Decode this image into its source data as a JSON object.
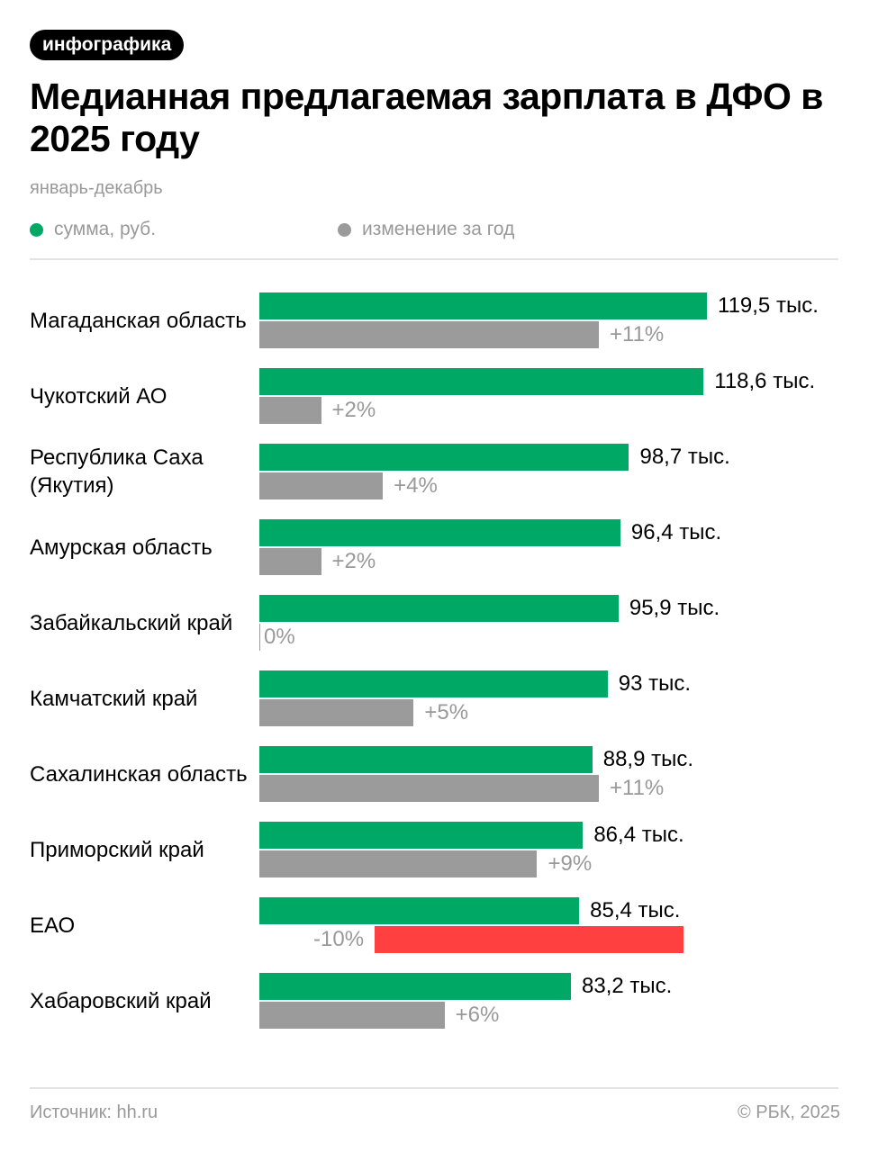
{
  "chart_data": {
    "type": "bar",
    "tag": "инфографика",
    "title": "Медианная предлагаемая зарплата в ДФО в 2025 году",
    "subtitle": "январь-декабрь",
    "categories": [
      "Магаданская область",
      "Чукотский АО",
      "Республика Саха (Якутия)",
      "Амурская область",
      "Забайкальский край",
      "Камчатский край",
      "Сахалинская область",
      "Приморский край",
      "ЕАО",
      "Хабаровский край"
    ],
    "series": [
      {
        "name": "сумма, руб.",
        "color": "#00a865",
        "values": [
          119.5,
          118.6,
          98.7,
          96.4,
          95.9,
          93,
          88.9,
          86.4,
          85.4,
          83.2
        ],
        "value_labels": [
          "119,5 тыс.",
          "118,6 тыс.",
          "98,7 тыс.",
          "96,4 тыс.",
          "95,9 тыс.",
          "93 тыс.",
          "88,9 тыс.",
          "86,4 тыс.",
          "85,4 тыс.",
          "83,2 тыс."
        ]
      },
      {
        "name": "изменение за год",
        "color": "#9b9b9b",
        "negative_color": "#ff4040",
        "values": [
          11,
          2,
          4,
          2,
          0,
          5,
          11,
          9,
          -10,
          6
        ],
        "value_labels": [
          "+11%",
          "+2%",
          "+4%",
          "+2%",
          "0%",
          "+5%",
          "+11%",
          "+9%",
          "-10%",
          "+6%"
        ]
      }
    ],
    "source": "Источник: hh.ru",
    "credit": "© РБК, 2025"
  }
}
